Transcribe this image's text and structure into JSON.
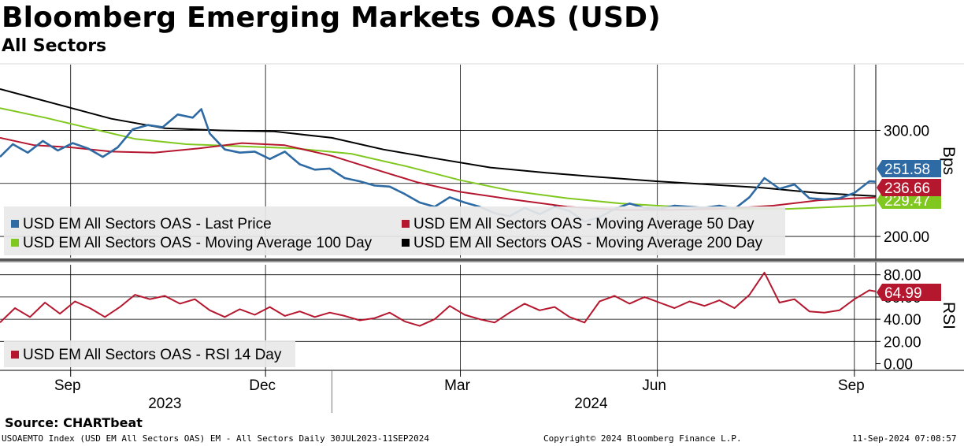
{
  "header": {
    "title": "Bloomberg Emerging Markets OAS (USD)",
    "subtitle": "All Sectors"
  },
  "footer": {
    "source": "Source: CHARTbeat",
    "ticker_line": "USOAEMTO Index (USD EM All Sectors OAS) EM - All Sectors  Daily 30JUL2023-11SEP2024",
    "copyright": "Copyright© 2024 Bloomberg Finance L.P.",
    "timestamp": "11-Sep-2024 07:08:57"
  },
  "colors": {
    "last_price": "#2e6aa3",
    "ma50": "#b5172f",
    "ma100": "#80c820",
    "ma200": "#000000",
    "rsi": "#b5172f"
  },
  "chart_data": [
    {
      "type": "line",
      "panel": "price",
      "ylabel": "Bps",
      "ylim": [
        180,
        362
      ],
      "yticks": [
        200,
        300
      ],
      "ytick_labels": [
        "200.00",
        "300.00"
      ],
      "x_range": [
        "2023-07-30",
        "2024-09-11"
      ],
      "x_month_ticks": [
        "Sep",
        "Dec",
        "Mar",
        "Jun",
        "Sep"
      ],
      "x_month_tick_dates": [
        "2023-09-01",
        "2023-12-01",
        "2024-03-01",
        "2024-06-01",
        "2024-09-01"
      ],
      "x_years": [
        {
          "label": "2023",
          "center": "2023-10-15"
        },
        {
          "label": "2024",
          "center": "2024-05-01"
        }
      ],
      "x_year_boundary": "2024-01-01",
      "vgrid_dates": [
        "2023-09-01",
        "2023-12-01",
        "2024-03-01",
        "2024-06-01",
        "2024-09-01"
      ],
      "hgrid_values": [
        200,
        250,
        300
      ],
      "legend_position": "lower-left",
      "series": [
        {
          "key": "last_price",
          "name": "USD EM All Sectors OAS - Last Price",
          "last_label": "251.58",
          "points": [
            [
              "2023-07-30",
              275
            ],
            [
              "2023-08-05",
              287
            ],
            [
              "2023-08-12",
              279
            ],
            [
              "2023-08-19",
              290
            ],
            [
              "2023-08-26",
              281
            ],
            [
              "2023-09-02",
              288
            ],
            [
              "2023-09-09",
              283
            ],
            [
              "2023-09-16",
              275
            ],
            [
              "2023-09-23",
              284
            ],
            [
              "2023-09-30",
              301
            ],
            [
              "2023-10-07",
              305
            ],
            [
              "2023-10-14",
              303
            ],
            [
              "2023-10-21",
              315
            ],
            [
              "2023-10-28",
              312
            ],
            [
              "2023-11-01",
              320
            ],
            [
              "2023-11-05",
              297
            ],
            [
              "2023-11-12",
              282
            ],
            [
              "2023-11-19",
              279
            ],
            [
              "2023-11-26",
              280
            ],
            [
              "2023-12-03",
              273
            ],
            [
              "2023-12-10",
              280
            ],
            [
              "2023-12-17",
              268
            ],
            [
              "2023-12-24",
              263
            ],
            [
              "2023-12-31",
              264
            ],
            [
              "2024-01-07",
              255
            ],
            [
              "2024-01-14",
              252
            ],
            [
              "2024-01-21",
              248
            ],
            [
              "2024-01-28",
              247
            ],
            [
              "2024-02-04",
              240
            ],
            [
              "2024-02-11",
              232
            ],
            [
              "2024-02-18",
              228
            ],
            [
              "2024-02-25",
              237
            ],
            [
              "2024-03-03",
              232
            ],
            [
              "2024-03-10",
              228
            ],
            [
              "2024-03-17",
              222
            ],
            [
              "2024-03-24",
              219
            ],
            [
              "2024-03-31",
              227
            ],
            [
              "2024-04-07",
              221
            ],
            [
              "2024-04-14",
              228
            ],
            [
              "2024-04-21",
              224
            ],
            [
              "2024-04-28",
              214
            ],
            [
              "2024-05-05",
              218
            ],
            [
              "2024-05-12",
              226
            ],
            [
              "2024-05-19",
              231
            ],
            [
              "2024-05-26",
              227
            ],
            [
              "2024-06-02",
              226
            ],
            [
              "2024-06-09",
              229
            ],
            [
              "2024-06-16",
              228
            ],
            [
              "2024-06-23",
              227
            ],
            [
              "2024-06-30",
              229
            ],
            [
              "2024-07-07",
              226
            ],
            [
              "2024-07-14",
              237
            ],
            [
              "2024-07-21",
              255
            ],
            [
              "2024-07-28",
              245
            ],
            [
              "2024-08-04",
              249
            ],
            [
              "2024-08-11",
              236
            ],
            [
              "2024-08-18",
              235
            ],
            [
              "2024-08-25",
              236
            ],
            [
              "2024-09-01",
              241
            ],
            [
              "2024-09-08",
              252
            ],
            [
              "2024-09-11",
              251.58
            ]
          ]
        },
        {
          "key": "ma50",
          "name": "USD EM All Sectors OAS - Moving Average 50 Day",
          "last_label": "236.66",
          "points": [
            [
              "2023-07-30",
              293
            ],
            [
              "2023-08-15",
              286
            ],
            [
              "2023-09-01",
              284
            ],
            [
              "2023-09-20",
              280
            ],
            [
              "2023-10-10",
              279
            ],
            [
              "2023-10-31",
              283
            ],
            [
              "2023-11-20",
              288
            ],
            [
              "2023-12-10",
              286
            ],
            [
              "2024-01-01",
              276
            ],
            [
              "2024-01-20",
              264
            ],
            [
              "2024-02-10",
              251
            ],
            [
              "2024-03-01",
              242
            ],
            [
              "2024-03-25",
              235
            ],
            [
              "2024-04-20",
              228
            ],
            [
              "2024-05-15",
              225
            ],
            [
              "2024-06-05",
              225
            ],
            [
              "2024-07-01",
              226
            ],
            [
              "2024-07-25",
              229
            ],
            [
              "2024-08-15",
              234
            ],
            [
              "2024-09-01",
              236
            ],
            [
              "2024-09-11",
              236.66
            ]
          ]
        },
        {
          "key": "ma100",
          "name": "USD EM All Sectors OAS - Moving Average 100 Day",
          "last_label": "229.47",
          "points": [
            [
              "2023-07-30",
              321
            ],
            [
              "2023-08-20",
              312
            ],
            [
              "2023-09-10",
              302
            ],
            [
              "2023-10-01",
              292
            ],
            [
              "2023-10-25",
              287
            ],
            [
              "2023-11-20",
              285
            ],
            [
              "2023-12-15",
              283
            ],
            [
              "2024-01-10",
              278
            ],
            [
              "2024-02-05",
              266
            ],
            [
              "2024-03-01",
              253
            ],
            [
              "2024-03-25",
              243
            ],
            [
              "2024-04-20",
              236
            ],
            [
              "2024-05-15",
              231
            ],
            [
              "2024-06-10",
              228
            ],
            [
              "2024-07-05",
              226
            ],
            [
              "2024-08-01",
              226
            ],
            [
              "2024-08-25",
              228
            ],
            [
              "2024-09-11",
              229.47
            ]
          ]
        },
        {
          "key": "ma200",
          "name": "USD EM All Sectors OAS - Moving Average 200 Day",
          "last_label": "",
          "points": [
            [
              "2023-07-30",
              339
            ],
            [
              "2023-08-25",
              325
            ],
            [
              "2023-09-20",
              311
            ],
            [
              "2023-10-15",
              302
            ],
            [
              "2023-11-10",
              300
            ],
            [
              "2023-12-05",
              299
            ],
            [
              "2024-01-01",
              293
            ],
            [
              "2024-01-25",
              282
            ],
            [
              "2024-02-20",
              273
            ],
            [
              "2024-03-15",
              265
            ],
            [
              "2024-04-10",
              260
            ],
            [
              "2024-05-05",
              256
            ],
            [
              "2024-06-01",
              252
            ],
            [
              "2024-06-25",
              249
            ],
            [
              "2024-07-20",
              246
            ],
            [
              "2024-08-15",
              241
            ],
            [
              "2024-09-11",
              238
            ]
          ]
        }
      ]
    },
    {
      "type": "line",
      "panel": "rsi",
      "ylabel": "RSI",
      "ylim": [
        -6,
        89
      ],
      "yticks": [
        0,
        20,
        40,
        60,
        80
      ],
      "ytick_labels": [
        "0.00",
        "20.00",
        "40.00",
        "60.00",
        "80.00"
      ],
      "hgrid_values": [
        20,
        40,
        60,
        80
      ],
      "legend_position": "lower-left",
      "series": [
        {
          "key": "rsi",
          "name": "USD EM All Sectors OAS - RSI 14 Day",
          "last_label": "64.99",
          "points": [
            [
              "2023-07-30",
              37
            ],
            [
              "2023-08-06",
              50
            ],
            [
              "2023-08-13",
              42
            ],
            [
              "2023-08-20",
              55
            ],
            [
              "2023-08-27",
              45
            ],
            [
              "2023-09-03",
              56
            ],
            [
              "2023-09-10",
              50
            ],
            [
              "2023-09-17",
              42
            ],
            [
              "2023-09-24",
              51
            ],
            [
              "2023-10-01",
              62
            ],
            [
              "2023-10-08",
              58
            ],
            [
              "2023-10-15",
              61
            ],
            [
              "2023-10-22",
              54
            ],
            [
              "2023-10-29",
              58
            ],
            [
              "2023-11-05",
              48
            ],
            [
              "2023-11-12",
              42
            ],
            [
              "2023-11-19",
              49
            ],
            [
              "2023-11-26",
              44
            ],
            [
              "2023-12-03",
              51
            ],
            [
              "2023-12-10",
              43
            ],
            [
              "2023-12-17",
              47
            ],
            [
              "2023-12-24",
              42
            ],
            [
              "2023-12-31",
              46
            ],
            [
              "2024-01-07",
              43
            ],
            [
              "2024-01-14",
              39
            ],
            [
              "2024-01-21",
              41
            ],
            [
              "2024-01-28",
              46
            ],
            [
              "2024-02-04",
              38
            ],
            [
              "2024-02-11",
              34
            ],
            [
              "2024-02-18",
              40
            ],
            [
              "2024-02-25",
              52
            ],
            [
              "2024-03-03",
              44
            ],
            [
              "2024-03-10",
              40
            ],
            [
              "2024-03-17",
              37
            ],
            [
              "2024-03-24",
              46
            ],
            [
              "2024-03-31",
              54
            ],
            [
              "2024-04-07",
              48
            ],
            [
              "2024-04-14",
              51
            ],
            [
              "2024-04-21",
              42
            ],
            [
              "2024-04-28",
              37
            ],
            [
              "2024-05-05",
              56
            ],
            [
              "2024-05-12",
              61
            ],
            [
              "2024-05-19",
              54
            ],
            [
              "2024-05-26",
              60
            ],
            [
              "2024-06-02",
              55
            ],
            [
              "2024-06-09",
              50
            ],
            [
              "2024-06-16",
              56
            ],
            [
              "2024-06-23",
              52
            ],
            [
              "2024-06-30",
              57
            ],
            [
              "2024-07-07",
              50
            ],
            [
              "2024-07-14",
              62
            ],
            [
              "2024-07-21",
              82
            ],
            [
              "2024-07-28",
              55
            ],
            [
              "2024-08-04",
              58
            ],
            [
              "2024-08-11",
              47
            ],
            [
              "2024-08-18",
              46
            ],
            [
              "2024-08-25",
              48
            ],
            [
              "2024-09-01",
              58
            ],
            [
              "2024-09-08",
              66
            ],
            [
              "2024-09-11",
              64.99
            ]
          ]
        }
      ]
    }
  ]
}
